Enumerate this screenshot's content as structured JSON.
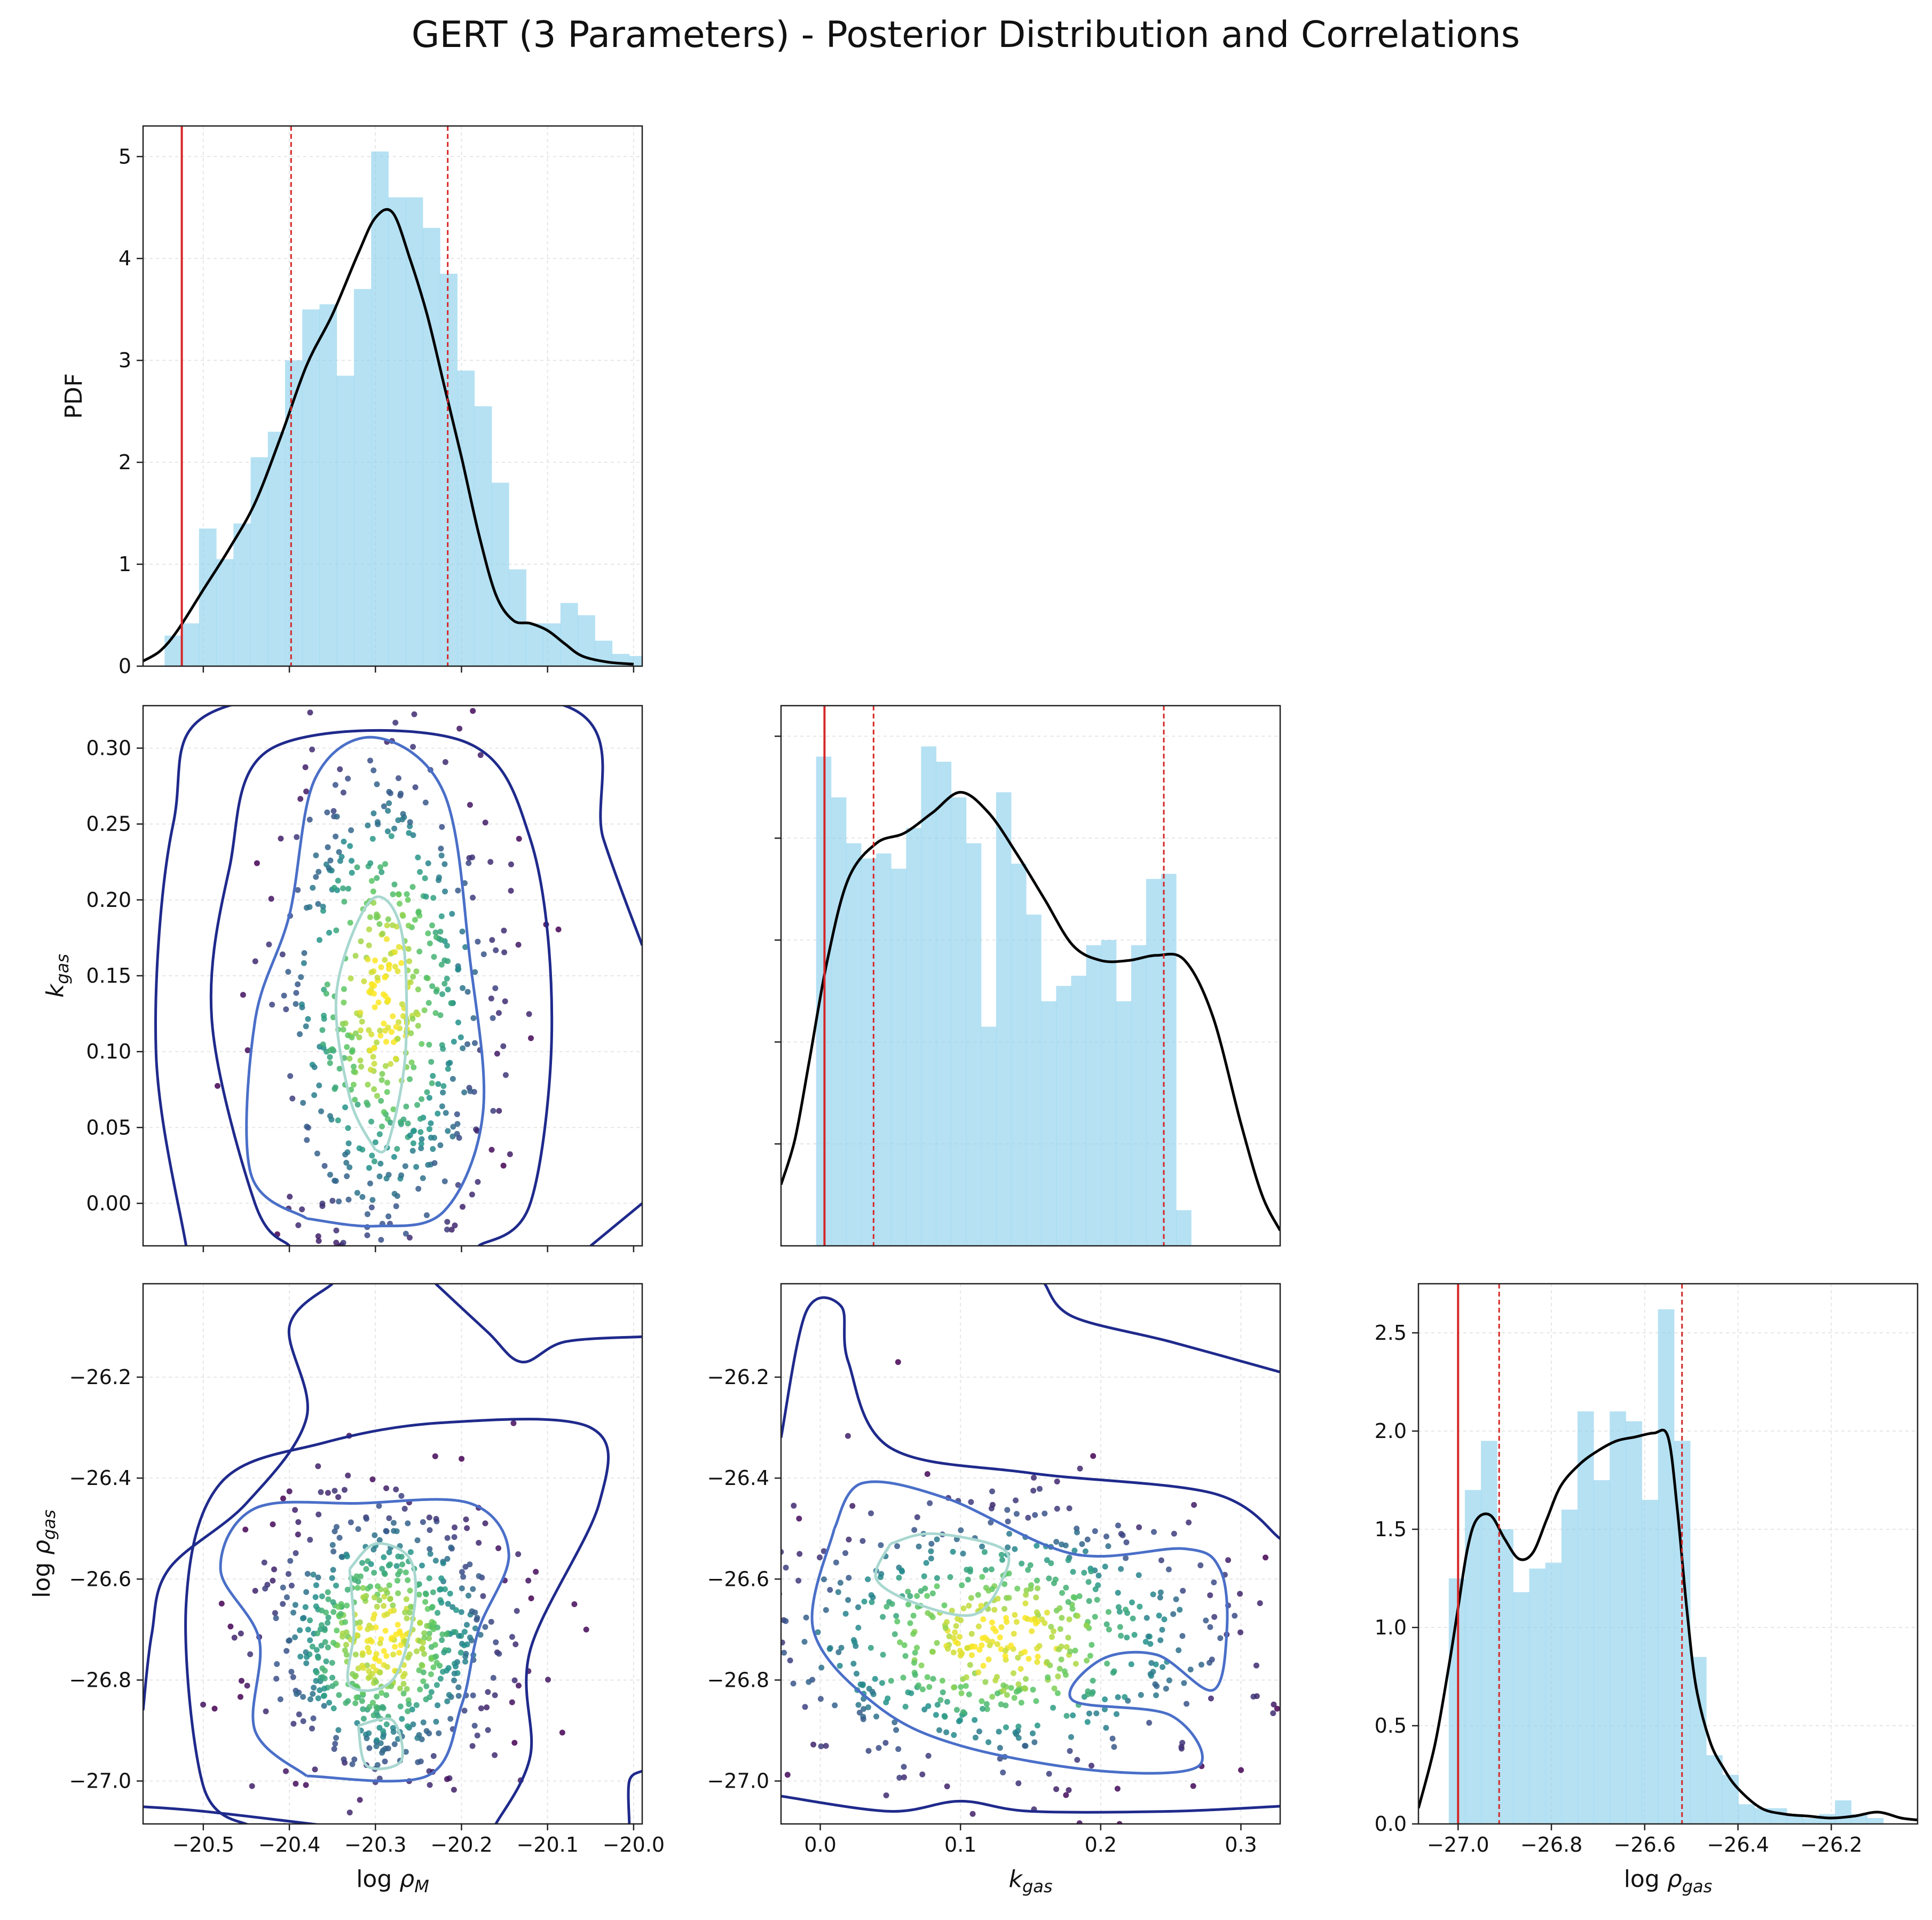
{
  "title": "GERT (3 Parameters) - Posterior Distribution and Correlations",
  "colors": {
    "hist": "#87CEEB",
    "kde": "#000000",
    "truth_line": "#d62728",
    "quantile_line": "#d62728",
    "contour_outer": "#1f2a8c",
    "contour_mid": "#4a6fc8",
    "contour_inner": "#a8d8d0",
    "scatter_cmap": "viridis"
  },
  "axis_labels": {
    "logrhoM": "log ρ_M",
    "kgas": "k_gas",
    "logrhogas": "log ρ_gas",
    "pdf": "PDF"
  },
  "chart_data": [
    {
      "id": "hist_logrhoM",
      "type": "bar",
      "ylabel": "PDF",
      "xlim": [
        -20.57,
        -19.99
      ],
      "ylim": [
        0,
        5.3
      ],
      "yticks": [
        0,
        1,
        2,
        3,
        4,
        5
      ],
      "xticks": [
        -20.5,
        -20.4,
        -20.3,
        -20.2,
        -20.1,
        -20.0
      ],
      "bin_edges_start": -20.545,
      "bin_width": 0.02,
      "values": [
        0.3,
        0.42,
        1.35,
        1.05,
        1.4,
        2.05,
        2.3,
        3.0,
        3.5,
        3.55,
        2.85,
        3.7,
        5.05,
        4.6,
        4.6,
        4.3,
        3.85,
        2.9,
        2.55,
        1.8,
        0.95,
        0.42,
        0.42,
        0.62,
        0.5,
        0.25,
        0.12,
        0.1
      ],
      "kde": {
        "x": [
          -20.57,
          -20.55,
          -20.53,
          -20.5,
          -20.47,
          -20.44,
          -20.41,
          -20.38,
          -20.35,
          -20.32,
          -20.3,
          -20.28,
          -20.26,
          -20.24,
          -20.22,
          -20.2,
          -20.18,
          -20.16,
          -20.14,
          -20.12,
          -20.1,
          -20.08,
          -20.06,
          -20.03,
          -20.0
        ],
        "y": [
          0.05,
          0.15,
          0.35,
          0.75,
          1.15,
          1.6,
          2.25,
          2.95,
          3.45,
          4.05,
          4.4,
          4.45,
          4.0,
          3.45,
          2.75,
          2.05,
          1.3,
          0.7,
          0.45,
          0.42,
          0.35,
          0.22,
          0.1,
          0.04,
          0.02
        ]
      },
      "truth": -20.525,
      "quantiles": [
        -20.398,
        -20.216
      ]
    },
    {
      "id": "scatter_logrhoM_kgas",
      "type": "scatter",
      "ylabel": "k_gas",
      "xlim": [
        -20.57,
        -19.99
      ],
      "ylim": [
        -0.028,
        0.328
      ],
      "yticks": [
        0.0,
        0.05,
        0.1,
        0.15,
        0.2,
        0.25,
        0.3
      ],
      "cx": -20.29,
      "cy": 0.135,
      "sx": 0.065,
      "sy": 0.085,
      "n": 600,
      "contours": [
        {
          "level": "outer",
          "points": [
            [
              -20.52,
              -0.028
            ],
            [
              -20.555,
              0.1
            ],
            [
              -20.535,
              0.25
            ],
            [
              -20.47,
              0.328
            ],
            [
              -20.08,
              0.328
            ],
            [
              -20.035,
              0.24
            ],
            [
              -19.99,
              0.17
            ]
          ]
        },
        {
          "level": "outer",
          "points": [
            [
              -20.05,
              -0.028
            ],
            [
              -19.99,
              0.0
            ]
          ]
        },
        {
          "level": "outer",
          "points": [
            [
              -20.4,
              -0.028
            ],
            [
              -20.44,
              0.0
            ],
            [
              -20.49,
              0.12
            ],
            [
              -20.47,
              0.22
            ],
            [
              -20.42,
              0.3
            ],
            [
              -20.2,
              0.305
            ],
            [
              -20.12,
              0.24
            ],
            [
              -20.095,
              0.12
            ],
            [
              -20.12,
              0.0
            ],
            [
              -20.18,
              -0.028
            ]
          ]
        },
        {
          "level": "mid",
          "points": [
            [
              -20.38,
              -0.01
            ],
            [
              -20.445,
              0.02
            ],
            [
              -20.44,
              0.12
            ],
            [
              -20.4,
              0.19
            ],
            [
              -20.37,
              0.28
            ],
            [
              -20.3,
              0.307
            ],
            [
              -20.22,
              0.27
            ],
            [
              -20.19,
              0.16
            ],
            [
              -20.175,
              0.06
            ],
            [
              -20.22,
              -0.005
            ],
            [
              -20.3,
              -0.015
            ],
            [
              -20.38,
              -0.01
            ]
          ]
        },
        {
          "level": "inner",
          "points": [
            [
              -20.3,
              0.035
            ],
            [
              -20.33,
              0.07
            ],
            [
              -20.345,
              0.14
            ],
            [
              -20.305,
              0.2
            ],
            [
              -20.27,
              0.18
            ],
            [
              -20.265,
              0.1
            ],
            [
              -20.285,
              0.04
            ],
            [
              -20.3,
              0.035
            ]
          ]
        }
      ]
    },
    {
      "id": "hist_kgas",
      "type": "bar",
      "xlim": [
        -0.028,
        0.328
      ],
      "ylim": [
        0,
        5.3
      ],
      "yticks": [
        1,
        2,
        3,
        4,
        5
      ],
      "bin_edges_start": -0.003,
      "bin_width": 0.0107,
      "values": [
        4.8,
        4.4,
        3.95,
        3.8,
        3.85,
        3.7,
        4.1,
        4.9,
        4.75,
        4.4,
        3.95,
        2.15,
        4.45,
        3.75,
        3.25,
        2.4,
        2.55,
        2.65,
        2.95,
        3.0,
        2.4,
        2.95,
        3.6,
        3.65,
        0.35
      ],
      "kde": {
        "x": [
          -0.028,
          -0.018,
          -0.008,
          0.005,
          0.02,
          0.04,
          0.06,
          0.08,
          0.1,
          0.12,
          0.14,
          0.16,
          0.18,
          0.2,
          0.22,
          0.24,
          0.26,
          0.28,
          0.3,
          0.315,
          0.328
        ],
        "y": [
          0.6,
          1.05,
          1.8,
          2.8,
          3.6,
          3.95,
          4.05,
          4.25,
          4.45,
          4.25,
          3.85,
          3.4,
          2.95,
          2.8,
          2.8,
          2.85,
          2.8,
          2.25,
          1.2,
          0.5,
          0.15
        ]
      },
      "truth": 0.003,
      "quantiles": [
        0.038,
        0.245
      ]
    },
    {
      "id": "scatter_logrhoM_logrhogas",
      "type": "scatter",
      "xlabel": "log ρ_M",
      "ylabel": "log ρ_gas",
      "xlim": [
        -20.57,
        -19.99
      ],
      "ylim": [
        -27.085,
        -26.015
      ],
      "yticks": [
        -26.2,
        -26.4,
        -26.6,
        -26.8,
        -27.0
      ],
      "xticks": [
        -20.5,
        -20.4,
        -20.3,
        -20.2,
        -20.1,
        -20.0
      ],
      "cx": -20.29,
      "cy": -26.72,
      "sx": 0.07,
      "sy": 0.14,
      "n": 650,
      "contours": [
        {
          "level": "outer",
          "points": [
            [
              -20.57,
              -26.86
            ],
            [
              -20.56,
              -26.71
            ],
            [
              -20.54,
              -26.58
            ],
            [
              -20.45,
              -26.45
            ],
            [
              -20.38,
              -26.28
            ],
            [
              -20.4,
              -26.1
            ],
            [
              -20.35,
              -26.015
            ]
          ]
        },
        {
          "level": "outer",
          "points": [
            [
              -20.23,
              -26.015
            ],
            [
              -20.17,
              -26.11
            ],
            [
              -20.13,
              -26.17
            ],
            [
              -20.08,
              -26.13
            ],
            [
              -19.99,
              -26.12
            ]
          ]
        },
        {
          "level": "outer",
          "points": [
            [
              -20.58,
              -27.05
            ],
            [
              -20.5,
              -27.06
            ],
            [
              -20.35,
              -27.09
            ]
          ]
        },
        {
          "level": "outer",
          "points": [
            [
              -19.99,
              -26.98
            ],
            [
              -20.005,
              -27.0
            ],
            [
              -20.005,
              -27.085
            ]
          ]
        },
        {
          "level": "outer",
          "points": [
            [
              -20.445,
              -27.09
            ],
            [
              -20.5,
              -27.01
            ],
            [
              -20.52,
              -26.65
            ],
            [
              -20.48,
              -26.41
            ],
            [
              -20.36,
              -26.33
            ],
            [
              -20.22,
              -26.29
            ],
            [
              -20.05,
              -26.3
            ],
            [
              -20.04,
              -26.45
            ],
            [
              -20.12,
              -26.74
            ],
            [
              -20.12,
              -26.95
            ],
            [
              -20.16,
              -27.085
            ]
          ]
        },
        {
          "level": "mid",
          "points": [
            [
              -20.38,
              -26.99
            ],
            [
              -20.44,
              -26.9
            ],
            [
              -20.435,
              -26.72
            ],
            [
              -20.48,
              -26.58
            ],
            [
              -20.44,
              -26.46
            ],
            [
              -20.32,
              -26.45
            ],
            [
              -20.19,
              -26.45
            ],
            [
              -20.145,
              -26.55
            ],
            [
              -20.18,
              -26.7
            ],
            [
              -20.2,
              -26.85
            ],
            [
              -20.24,
              -26.99
            ],
            [
              -20.38,
              -26.99
            ]
          ]
        },
        {
          "level": "inner",
          "points": [
            [
              -20.33,
              -26.58
            ],
            [
              -20.325,
              -26.7
            ],
            [
              -20.33,
              -26.81
            ],
            [
              -20.28,
              -26.8
            ],
            [
              -20.255,
              -26.66
            ],
            [
              -20.26,
              -26.56
            ],
            [
              -20.3,
              -26.53
            ],
            [
              -20.33,
              -26.58
            ]
          ]
        },
        {
          "level": "inner",
          "points": [
            [
              -20.32,
              -26.89
            ],
            [
              -20.31,
              -26.97
            ],
            [
              -20.27,
              -26.96
            ],
            [
              -20.28,
              -26.88
            ],
            [
              -20.32,
              -26.89
            ]
          ]
        }
      ]
    },
    {
      "id": "scatter_kgas_logrhogas",
      "type": "scatter",
      "xlabel": "k_gas",
      "xlim": [
        -0.028,
        0.328
      ],
      "ylim": [
        -27.085,
        -26.015
      ],
      "yticks": [
        -26.2,
        -26.4,
        -26.6,
        -26.8,
        -27.0
      ],
      "xticks": [
        0.0,
        0.1,
        0.2,
        0.3
      ],
      "cx": 0.13,
      "cy": -26.72,
      "sx": 0.085,
      "sy": 0.14,
      "n": 650,
      "contours": [
        {
          "level": "outer",
          "points": [
            [
              -0.028,
              -26.32
            ],
            [
              -0.01,
              -26.07
            ],
            [
              0.015,
              -26.06
            ],
            [
              0.02,
              -26.17
            ],
            [
              0.05,
              -26.34
            ],
            [
              0.15,
              -26.39
            ],
            [
              0.28,
              -26.43
            ],
            [
              0.328,
              -26.52
            ]
          ]
        },
        {
          "level": "outer",
          "points": [
            [
              0.16,
              -26.015
            ],
            [
              0.18,
              -26.08
            ],
            [
              0.25,
              -26.13
            ],
            [
              0.328,
              -26.19
            ]
          ]
        },
        {
          "level": "outer",
          "points": [
            [
              -0.028,
              -27.03
            ],
            [
              0.05,
              -27.06
            ],
            [
              0.1,
              -27.04
            ],
            [
              0.15,
              -27.06
            ],
            [
              0.25,
              -27.06
            ],
            [
              0.328,
              -27.05
            ]
          ]
        },
        {
          "level": "mid",
          "points": [
            [
              0.01,
              -26.5
            ],
            [
              -0.005,
              -26.7
            ],
            [
              0.04,
              -26.85
            ],
            [
              0.1,
              -26.93
            ],
            [
              0.2,
              -26.98
            ],
            [
              0.27,
              -26.97
            ],
            [
              0.25,
              -26.87
            ],
            [
              0.18,
              -26.84
            ],
            [
              0.2,
              -26.76
            ],
            [
              0.24,
              -26.75
            ],
            [
              0.28,
              -26.82
            ],
            [
              0.29,
              -26.7
            ],
            [
              0.285,
              -26.58
            ],
            [
              0.26,
              -26.54
            ],
            [
              0.18,
              -26.55
            ],
            [
              0.09,
              -26.44
            ],
            [
              0.03,
              -26.41
            ],
            [
              0.01,
              -26.5
            ]
          ]
        },
        {
          "level": "inner",
          "points": [
            [
              0.05,
              -26.53
            ],
            [
              0.04,
              -26.6
            ],
            [
              0.07,
              -26.65
            ],
            [
              0.11,
              -26.67
            ],
            [
              0.13,
              -26.6
            ],
            [
              0.13,
              -26.54
            ],
            [
              0.08,
              -26.51
            ],
            [
              0.05,
              -26.53
            ]
          ]
        }
      ]
    },
    {
      "id": "hist_logrhogas",
      "type": "bar",
      "xlabel": "log ρ_gas",
      "xlim": [
        -27.085,
        -26.015
      ],
      "ylim": [
        0,
        2.75
      ],
      "yticks": [
        0.0,
        0.5,
        1.0,
        1.5,
        2.0,
        2.5
      ],
      "xticks": [
        -27.0,
        -26.8,
        -26.6,
        -26.4,
        -26.2
      ],
      "bin_edges_start": -27.02,
      "bin_width": 0.0345,
      "values": [
        1.25,
        1.7,
        1.95,
        1.5,
        1.18,
        1.3,
        1.33,
        1.6,
        2.1,
        1.75,
        2.1,
        2.05,
        1.65,
        2.62,
        1.95,
        0.85,
        0.35,
        0.25,
        0.1,
        0.08,
        0.08,
        0.05,
        0.03,
        0.05,
        0.12,
        0.05,
        0.03
      ],
      "kde": {
        "x": [
          -27.085,
          -27.05,
          -27.02,
          -27.0,
          -26.98,
          -26.96,
          -26.93,
          -26.9,
          -26.87,
          -26.84,
          -26.81,
          -26.78,
          -26.74,
          -26.7,
          -26.66,
          -26.62,
          -26.58,
          -26.55,
          -26.53,
          -26.51,
          -26.49,
          -26.46,
          -26.43,
          -26.4,
          -26.35,
          -26.3,
          -26.25,
          -26.2,
          -26.15,
          -26.1,
          -26.05,
          -26.015
        ],
        "y": [
          0.08,
          0.4,
          0.8,
          1.1,
          1.4,
          1.55,
          1.57,
          1.45,
          1.35,
          1.38,
          1.55,
          1.72,
          1.83,
          1.9,
          1.95,
          1.97,
          1.99,
          1.97,
          1.6,
          1.1,
          0.7,
          0.42,
          0.28,
          0.18,
          0.08,
          0.05,
          0.04,
          0.03,
          0.04,
          0.06,
          0.03,
          0.02
        ]
      },
      "truth": -27.0,
      "quantiles": [
        -26.912,
        -26.52
      ]
    }
  ]
}
